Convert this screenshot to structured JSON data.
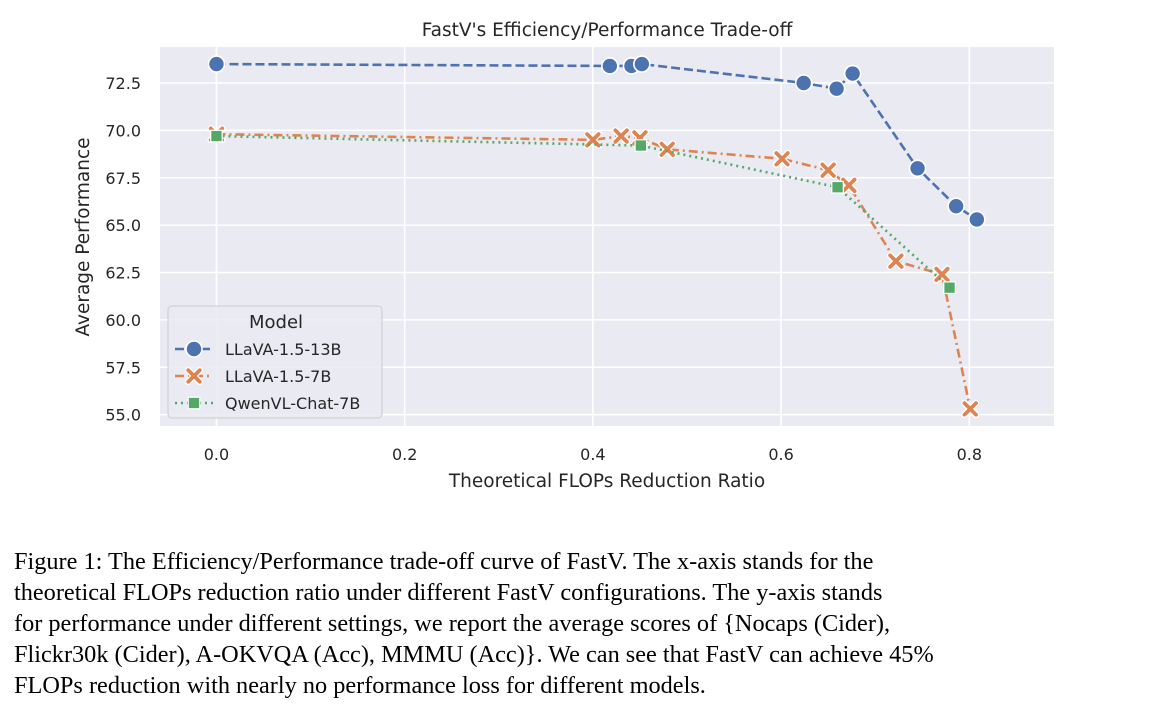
{
  "chart_data": {
    "type": "line",
    "title": "FastV's Efficiency/Performance Trade-off",
    "xlabel": "Theoretical FLOPs Reduction Ratio",
    "ylabel": "Average Performance",
    "xlim": [
      -0.06,
      0.89
    ],
    "ylim": [
      54.4,
      74.4
    ],
    "xticks": [
      0.0,
      0.2,
      0.4,
      0.6,
      0.8
    ],
    "xtick_labels": [
      "0.0",
      "0.2",
      "0.4",
      "0.6",
      "0.8"
    ],
    "yticks": [
      55.0,
      57.5,
      60.0,
      62.5,
      65.0,
      67.5,
      70.0,
      72.5
    ],
    "ytick_labels": [
      "55.0",
      "57.5",
      "60.0",
      "62.5",
      "65.0",
      "67.5",
      "70.0",
      "72.5"
    ],
    "grid": true,
    "legend": {
      "title": "Model",
      "placement": "lower-left"
    },
    "series": [
      {
        "name": "LLaVA-1.5-13B",
        "color": "#4c72b0",
        "marker": "circle",
        "linestyle": "dashed",
        "x": [
          0.0,
          0.418,
          0.441,
          0.452,
          0.624,
          0.659,
          0.676,
          0.745,
          0.786,
          0.808
        ],
        "y": [
          73.5,
          73.4,
          73.4,
          73.5,
          72.5,
          72.2,
          73.0,
          68.0,
          66.0,
          65.3
        ]
      },
      {
        "name": "LLaVA-1.5-7B",
        "color": "#dd8452",
        "marker": "x",
        "linestyle": "dashdot",
        "x": [
          0.0,
          0.4,
          0.43,
          0.45,
          0.479,
          0.601,
          0.65,
          0.672,
          0.722,
          0.771,
          0.801
        ],
        "y": [
          69.8,
          69.5,
          69.7,
          69.6,
          69.0,
          68.5,
          67.9,
          67.1,
          63.1,
          62.4,
          55.3
        ]
      },
      {
        "name": "QwenVL-Chat-7B",
        "color": "#55a868",
        "marker": "square",
        "linestyle": "dotted",
        "x": [
          0.0,
          0.451,
          0.66,
          0.779
        ],
        "y": [
          69.7,
          69.2,
          67.0,
          61.7
        ]
      }
    ]
  },
  "caption": {
    "lines": [
      "Figure 1: The Efficiency/Performance trade-off curve of FastV. The x-axis stands for the",
      "theoretical FLOPs reduction ratio under different FastV configurations. The y-axis stands",
      "for performance under different settings, we report the average scores of {Nocaps (Cider),",
      "Flickr30k (Cider), A-OKVQA (Acc), MMMU (Acc)}. We can see that FastV can achieve 45%",
      "FLOPs reduction with nearly no performance loss for different models."
    ]
  }
}
